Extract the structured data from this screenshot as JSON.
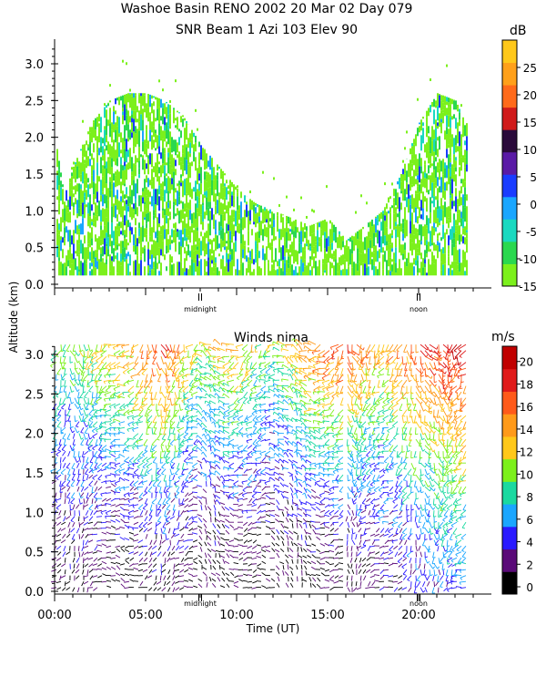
{
  "figure": {
    "title_line1": "Washoe Basin RENO 2002  20 Mar 02 Day 079",
    "title_line2": "SNR Beam 1 Azi 103 Elev 90",
    "ylabel": "Altitude (km)",
    "xlabel": "Time (UT)",
    "midnight_label": "midnight",
    "noon_label": "noon"
  },
  "colors": {
    "background": "#ffffff",
    "axis": "#000000",
    "snr_dominant": "#7cf01c",
    "snr_mid": "#2ad88a",
    "snr_high": "#1a66ff",
    "wind_low": "#000000",
    "wind_high": "#ff1a1a"
  },
  "chart_data": [
    {
      "type": "heatmap",
      "title": "",
      "ylim": [
        0.0,
        3.3
      ],
      "xlim": [
        0,
        24
      ],
      "yticks": [
        "0.0",
        "0.5",
        "1.0",
        "1.5",
        "2.0",
        "2.5",
        "3.0"
      ],
      "colorbar": {
        "unit": "dB",
        "ticks": [
          "-15",
          "-10",
          "-5",
          "0",
          "5",
          "10",
          "15",
          "20",
          "25"
        ],
        "colors": [
          "#7cf01c",
          "#2ad84f",
          "#1ad9c0",
          "#1aa6ff",
          "#1a3cff",
          "#5a1aa6",
          "#2a0a3a",
          "#d01a1a",
          "#ff6a1a",
          "#ffa01a",
          "#ffc81a"
        ],
        "range": [
          -15,
          30
        ]
      },
      "echo_top_km": [
        [
          0.0,
          2.0
        ],
        [
          0.5,
          1.2
        ],
        [
          1.0,
          1.6
        ],
        [
          1.5,
          1.9
        ],
        [
          2.0,
          2.2
        ],
        [
          3.0,
          2.5
        ],
        [
          4.0,
          2.6
        ],
        [
          5.0,
          2.6
        ],
        [
          6.0,
          2.5
        ],
        [
          7.0,
          2.3
        ],
        [
          8.0,
          1.9
        ],
        [
          9.0,
          1.6
        ],
        [
          10.0,
          1.3
        ],
        [
          11.0,
          1.1
        ],
        [
          12.0,
          1.0
        ],
        [
          13.0,
          0.9
        ],
        [
          14.0,
          0.8
        ],
        [
          15.0,
          0.9
        ],
        [
          16.0,
          0.6
        ],
        [
          17.0,
          0.8
        ],
        [
          18.0,
          1.0
        ],
        [
          19.0,
          1.5
        ],
        [
          20.0,
          2.2
        ],
        [
          21.0,
          2.6
        ],
        [
          22.0,
          2.5
        ],
        [
          22.7,
          2.1
        ]
      ],
      "midnight_hour": 8.0,
      "noon_hour": 20.0
    },
    {
      "type": "scatter",
      "title": "Winds nima",
      "ylim": [
        0.0,
        3.2
      ],
      "xlim": [
        0,
        24
      ],
      "xticks": [
        "00:00",
        "05:00",
        "10:00",
        "15:00",
        "20:00"
      ],
      "xtick_hours": [
        0,
        5,
        10,
        15,
        20
      ],
      "yticks": [
        "0.0",
        "0.5",
        "1.0",
        "1.5",
        "2.0",
        "2.5",
        "3.0"
      ],
      "colorbar": {
        "unit": "m/s",
        "ticks": [
          "0",
          "2",
          "4",
          "6",
          "8",
          "10",
          "12",
          "14",
          "16",
          "18",
          "20"
        ],
        "colors": [
          "#000000",
          "#5a0a78",
          "#2a1aff",
          "#1aa6ff",
          "#1ad9a0",
          "#7cf01c",
          "#ffc81a",
          "#ff9a1a",
          "#ff5a1a",
          "#e01a1a",
          "#c00000"
        ],
        "range": [
          0,
          22
        ]
      },
      "speed_profile": [
        {
          "hour": 0.5,
          "low": 2,
          "high": 10
        },
        {
          "hour": 2.0,
          "low": 2,
          "high": 12
        },
        {
          "hour": 4.0,
          "low": 1,
          "high": 14
        },
        {
          "hour": 6.0,
          "low": 2,
          "high": 18
        },
        {
          "hour": 8.0,
          "low": 1,
          "high": 12
        },
        {
          "hour": 10.0,
          "low": 1,
          "high": 14
        },
        {
          "hour": 12.0,
          "low": 1,
          "high": 10
        },
        {
          "hour": 14.0,
          "low": 1,
          "high": 16
        },
        {
          "hour": 16.0,
          "low": 1,
          "high": 18
        },
        {
          "hour": 18.0,
          "low": 2,
          "high": 14
        },
        {
          "hour": 20.0,
          "low": 4,
          "high": 18
        },
        {
          "hour": 22.0,
          "low": 6,
          "high": 20
        }
      ],
      "wind_top_km": 3.15,
      "wind_end_hour": 22.7,
      "midnight_hour": 8.0,
      "noon_hour": 20.0
    }
  ]
}
